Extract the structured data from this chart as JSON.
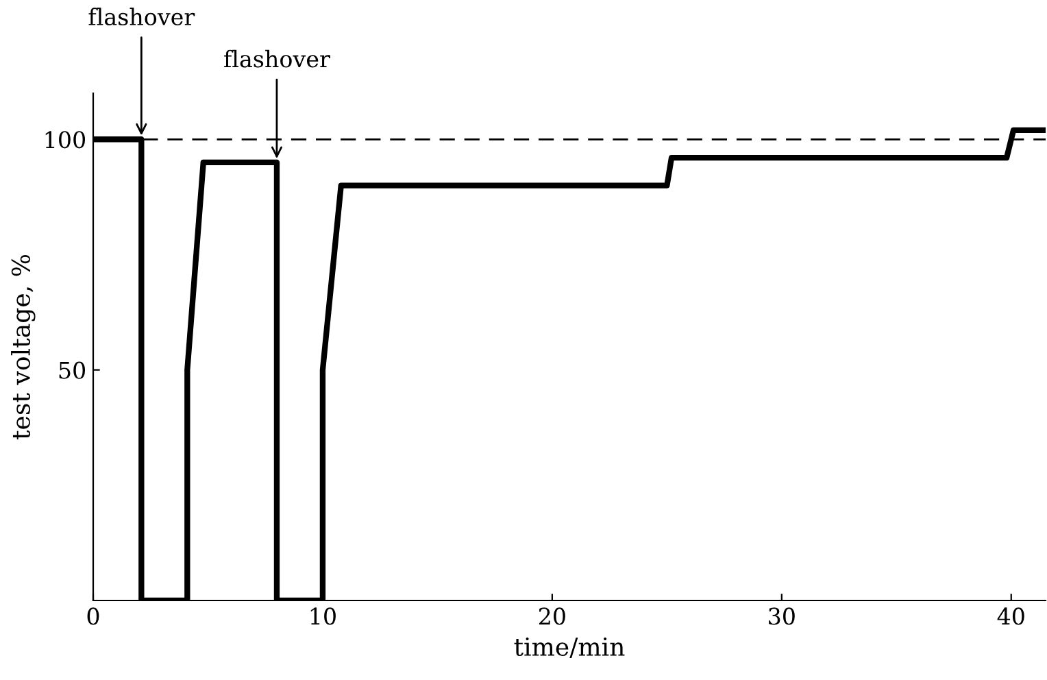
{
  "chart_data": {
    "type": "line",
    "xlabel": "time/min",
    "ylabel": "test voltage, %",
    "x": [
      0,
      2.1,
      2.1,
      4.1,
      4.1,
      4.8,
      8.0,
      8.0,
      10.0,
      10.0,
      10.8,
      25.0,
      25.2,
      39.8,
      40.1,
      41.5
    ],
    "series": [
      {
        "color": "#000000",
        "values": [
          100,
          100,
          0,
          0,
          50,
          95,
          95,
          0,
          0,
          50,
          90,
          90,
          96,
          96,
          102,
          102
        ]
      }
    ],
    "xlim": [
      0,
      41.5
    ],
    "ylim": [
      0,
      110
    ],
    "xticks": [
      0,
      10,
      20,
      30,
      40
    ],
    "yticks": [
      50,
      100
    ],
    "ref_lines": [
      {
        "axis": "y",
        "value": 100,
        "line_style": "dashed",
        "color": "#000000"
      }
    ],
    "annotations": [
      {
        "text": "flashover",
        "x": 2.1,
        "y": 100
      },
      {
        "text": "flashover",
        "x": 8.0,
        "y": 95
      }
    ],
    "grid": false,
    "legend": false,
    "marker": "none",
    "line_style": "solid"
  }
}
